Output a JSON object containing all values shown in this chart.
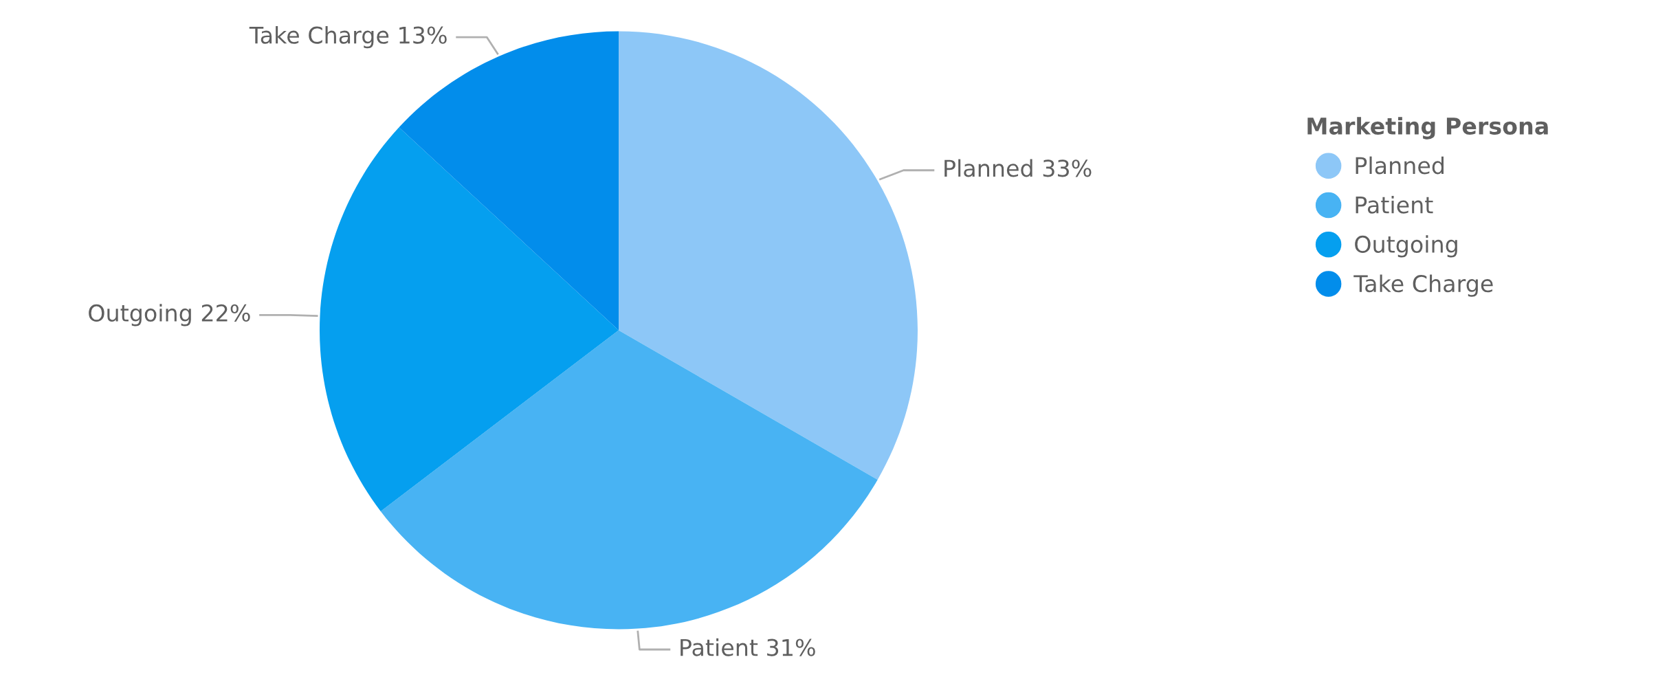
{
  "chart_data": {
    "type": "pie",
    "legend_title": "Marketing Persona",
    "categories": [
      "Planned",
      "Patient",
      "Outgoing",
      "Take Charge"
    ],
    "values": [
      33,
      31,
      22,
      13
    ],
    "value_labels": [
      "Planned 33%",
      "Patient 31%",
      "Outgoing 22%",
      "Take Charge 13%"
    ],
    "colors": [
      "#8dc7f7",
      "#48b3f3",
      "#059fef",
      "#028deb"
    ],
    "legend": "right"
  }
}
